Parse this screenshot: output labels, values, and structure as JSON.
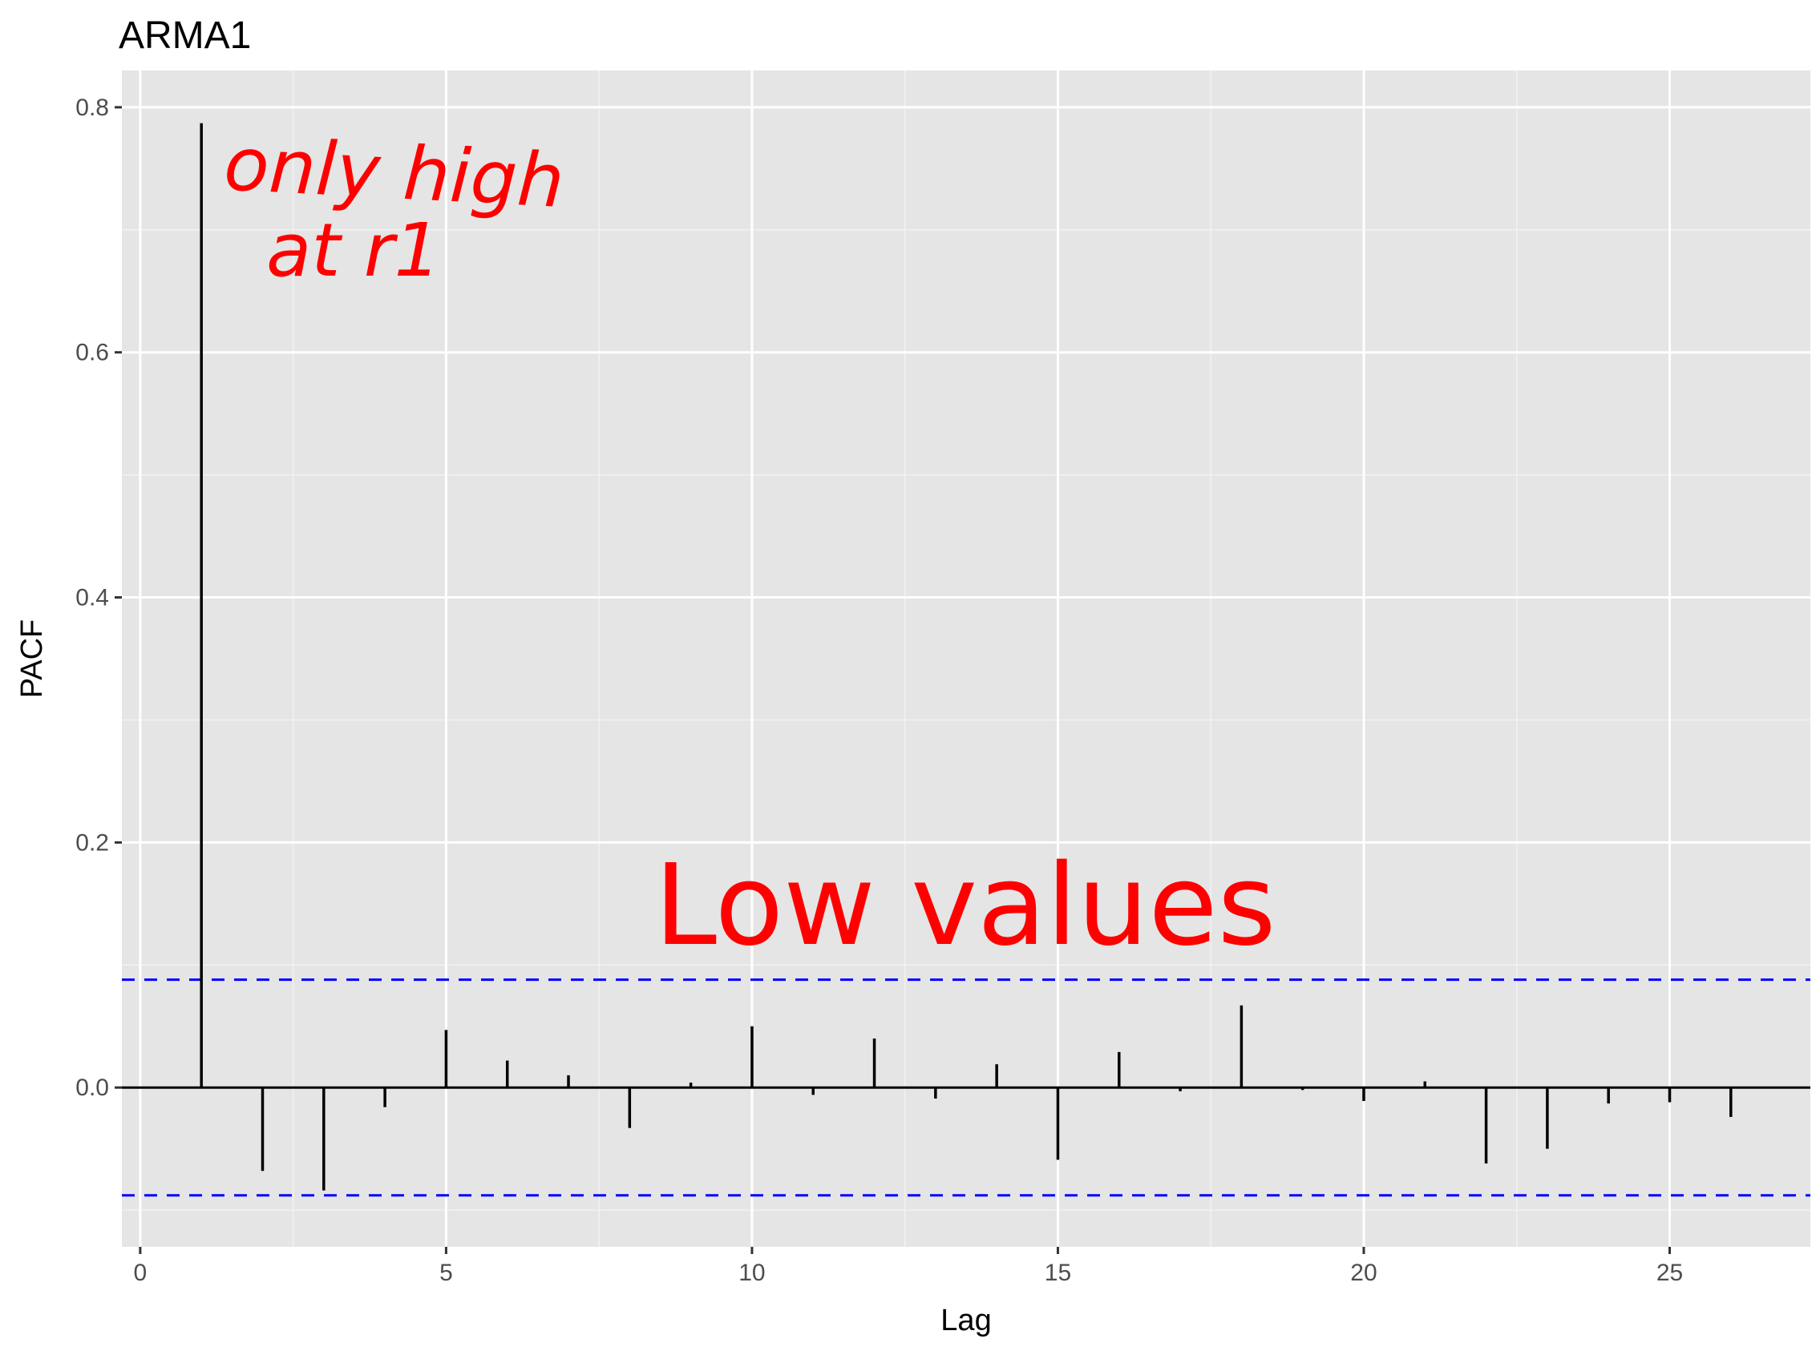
{
  "chart_data": {
    "type": "bar",
    "title": "ARMA1",
    "xlabel": "Lag",
    "ylabel": "PACF",
    "xlim": [
      -0.3,
      27.3
    ],
    "ylim": [
      -0.13,
      0.83
    ],
    "x_ticks": [
      0,
      5,
      10,
      15,
      20,
      25
    ],
    "x_tick_labels": [
      "0",
      "5",
      "10",
      "15",
      "20",
      "25"
    ],
    "y_ticks": [
      0.0,
      0.2,
      0.4,
      0.6,
      0.8
    ],
    "y_tick_labels": [
      "0.0",
      "0.2",
      "0.4",
      "0.6",
      "0.8"
    ],
    "grid": true,
    "background": "#e5e5e5",
    "bar_color": "#000000",
    "lags": [
      1,
      2,
      3,
      4,
      5,
      6,
      7,
      8,
      9,
      10,
      11,
      12,
      13,
      14,
      15,
      16,
      17,
      18,
      19,
      20,
      21,
      22,
      23,
      24,
      25,
      26
    ],
    "values": [
      0.787,
      -0.068,
      -0.084,
      -0.016,
      0.047,
      0.022,
      0.01,
      -0.033,
      0.004,
      0.05,
      -0.006,
      0.04,
      -0.009,
      0.019,
      -0.059,
      0.029,
      -0.003,
      0.067,
      -0.002,
      -0.011,
      0.005,
      -0.062,
      -0.05,
      -0.013,
      -0.012,
      -0.024
    ],
    "confidence_bound": 0.088,
    "confidence_color": "#0000ff",
    "annotations": [
      {
        "text": "only high",
        "color": "#ff0000"
      },
      {
        "text": "at r1",
        "color": "#ff0000"
      },
      {
        "text": "Low values",
        "color": "#ff0000"
      }
    ]
  }
}
